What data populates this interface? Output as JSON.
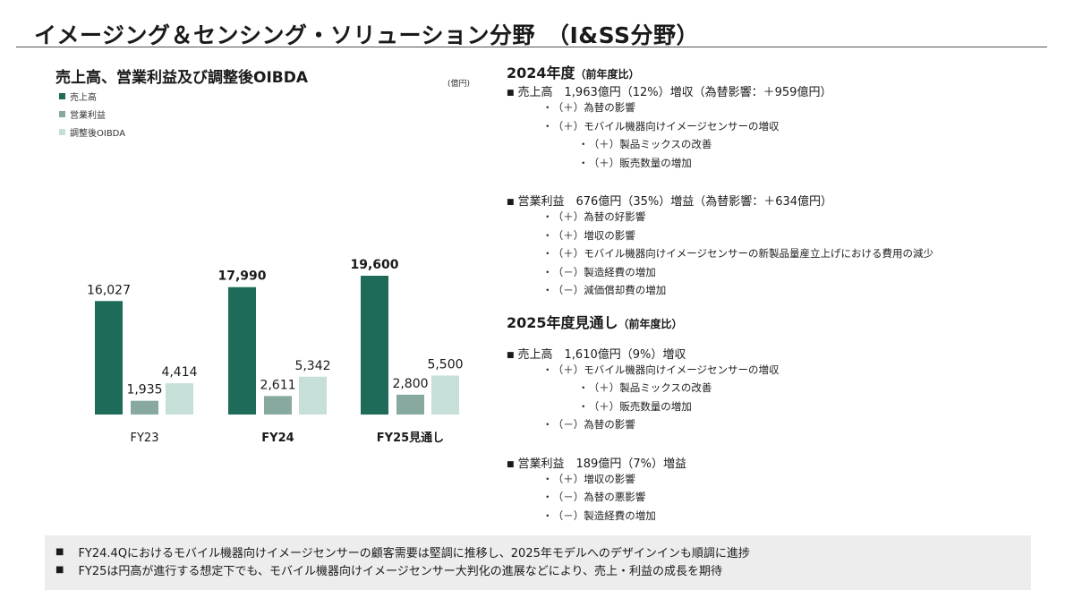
{
  "page_title": "イメージング＆センシング・ソリューション分野　（I&SS分野）",
  "chart_title": "売上高、営業利益及び調整後OIBDA",
  "unit": "(億円)",
  "colors": {
    "sales": "#1d6b58",
    "operating_income": "#87a9a0",
    "oibda": "#c6dfd9"
  },
  "chart_data": {
    "type": "bar",
    "title": "売上高、営業利益及び調整後OIBDA",
    "unit": "(億円)",
    "categories": [
      "FY23",
      "FY24",
      "FY25見通し"
    ],
    "category_bold": [
      false,
      true,
      true
    ],
    "ylim": [
      0,
      20000
    ],
    "grid": false,
    "legend_position": "top-left",
    "series": [
      {
        "name": "売上高",
        "values": [
          16027,
          17990,
          19600
        ],
        "labels": [
          "16,027",
          "17,990",
          "19,600"
        ],
        "color": "#1d6b58"
      },
      {
        "name": "営業利益",
        "values": [
          1935,
          2611,
          2800
        ],
        "labels": [
          "1,935",
          "2,611",
          "2,800"
        ],
        "color": "#87a9a0"
      },
      {
        "name": "調整後OIBDA",
        "values": [
          4414,
          5342,
          5500
        ],
        "labels": [
          "4,414",
          "5,342",
          "5,500"
        ],
        "color": "#c6dfd9"
      }
    ]
  },
  "sections": [
    {
      "title": "2024年度",
      "subtitle": "（前年度比）",
      "groups": [
        {
          "head": "売上高　1,963億円（12%）増収（為替影響：＋959億円）",
          "items": [
            {
              "level": 1,
              "sign": "（＋）",
              "text": "為替の影響"
            },
            {
              "level": 1,
              "sign": "（＋）",
              "text": "モバイル機器向けイメージセンサーの増収"
            },
            {
              "level": 2,
              "sign": "（＋）",
              "text": "製品ミックスの改善"
            },
            {
              "level": 2,
              "sign": "（＋）",
              "text": "販売数量の増加"
            }
          ]
        },
        {
          "head": "営業利益　676億円（35%）増益（為替影響：＋634億円）",
          "items": [
            {
              "level": 1,
              "sign": "（＋）",
              "text": "為替の好影響"
            },
            {
              "level": 1,
              "sign": "（＋）",
              "text": "増収の影響"
            },
            {
              "level": 1,
              "sign": "（＋）",
              "text": "モバイル機器向けイメージセンサーの新製品量産立上げにおける費用の減少"
            },
            {
              "level": 1,
              "sign": "（－）",
              "text": "製造経費の増加"
            },
            {
              "level": 1,
              "sign": "（－）",
              "text": "減価償却費の増加"
            }
          ]
        }
      ]
    },
    {
      "title": "2025年度見通し",
      "subtitle": "（前年度比）",
      "groups": [
        {
          "head": "売上高　1,610億円（9%）増収",
          "items": [
            {
              "level": 1,
              "sign": "（＋）",
              "text": "モバイル機器向けイメージセンサーの増収"
            },
            {
              "level": 2,
              "sign": "（＋）",
              "text": "製品ミックスの改善"
            },
            {
              "level": 2,
              "sign": "（＋）",
              "text": "販売数量の増加"
            },
            {
              "level": 1,
              "sign": "（－）",
              "text": "為替の影響"
            }
          ]
        },
        {
          "head": "営業利益　189億円（7%）増益",
          "items": [
            {
              "level": 1,
              "sign": "（＋）",
              "text": "増収の影響"
            },
            {
              "level": 1,
              "sign": "（－）",
              "text": "為替の悪影響"
            },
            {
              "level": 1,
              "sign": "（－）",
              "text": "製造経費の増加"
            }
          ]
        }
      ]
    }
  ],
  "footer": [
    "FY24.4Qにおけるモバイル機器向けイメージセンサーの顧客需要は堅調に推移し、2025年モデルへのデザインインも順調に進捗",
    "FY25は円高が進行する想定下でも、モバイル機器向けイメージセンサー大判化の進展などにより、売上・利益の成長を期待"
  ]
}
